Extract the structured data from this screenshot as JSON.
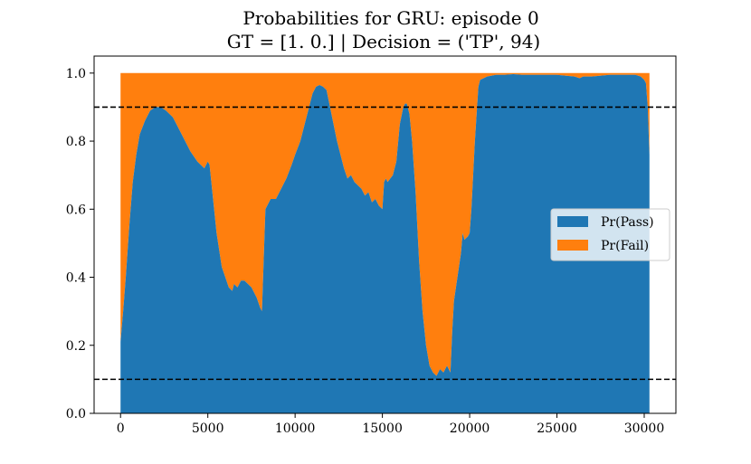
{
  "chart_data": {
    "type": "area",
    "title": "Probabilities for GRU: episode 0",
    "subtitle": "GT = [1. 0.] | Decision = ('TP', 94)",
    "xlim": [
      -1515,
      31815
    ],
    "ylim": [
      0,
      1.05
    ],
    "x_ticks": [
      0,
      5000,
      10000,
      15000,
      20000,
      25000,
      30000
    ],
    "x_tick_labels": [
      "0",
      "5000",
      "10000",
      "15000",
      "20000",
      "25000",
      "30000"
    ],
    "y_ticks": [
      0,
      0.2,
      0.4,
      0.6,
      0.8,
      1.0
    ],
    "y_tick_labels": [
      "0.0",
      "0.2",
      "0.4",
      "0.6",
      "0.8",
      "1.0"
    ],
    "thresholds": [
      0.1,
      0.9
    ],
    "grid": false,
    "legend_position": "center-right",
    "x": [
      0,
      150,
      300,
      500,
      700,
      900,
      1100,
      1400,
      1700,
      2000,
      2300,
      2600,
      3000,
      3300,
      3600,
      4000,
      4400,
      4800,
      5000,
      5100,
      5200,
      5500,
      5800,
      6000,
      6200,
      6400,
      6500,
      6700,
      6900,
      7100,
      7500,
      7800,
      8000,
      8100,
      8300,
      8600,
      8900,
      9200,
      9500,
      9800,
      10000,
      10300,
      10500,
      10700,
      10900,
      11000,
      11200,
      11400,
      11600,
      11800,
      12000,
      12200,
      12400,
      12600,
      12800,
      13000,
      13200,
      13400,
      13600,
      13800,
      14000,
      14200,
      14400,
      14600,
      14800,
      15000,
      15100,
      15200,
      15300,
      15600,
      15800,
      16000,
      16200,
      16300,
      16400,
      16550,
      16700,
      16900,
      17100,
      17300,
      17500,
      17700,
      17900,
      18100,
      18300,
      18500,
      18700,
      18900,
      19000,
      19100,
      19300,
      19500,
      19600,
      19700,
      19900,
      20000,
      20100,
      20300,
      20500,
      20600,
      20800,
      21000,
      21500,
      22000,
      22500,
      23000,
      24000,
      25000,
      26000,
      26300,
      26500,
      27000,
      28000,
      29000,
      29500,
      29800,
      30000,
      30100,
      30200,
      30300
    ],
    "series": [
      {
        "name": "Pr(Pass)",
        "color": "#1f77b4",
        "values": [
          0.21,
          0.3,
          0.4,
          0.55,
          0.68,
          0.76,
          0.82,
          0.86,
          0.89,
          0.9,
          0.9,
          0.89,
          0.87,
          0.84,
          0.81,
          0.77,
          0.74,
          0.72,
          0.74,
          0.73,
          0.68,
          0.53,
          0.43,
          0.4,
          0.37,
          0.36,
          0.38,
          0.37,
          0.39,
          0.39,
          0.37,
          0.34,
          0.31,
          0.3,
          0.6,
          0.63,
          0.63,
          0.66,
          0.69,
          0.73,
          0.76,
          0.8,
          0.84,
          0.88,
          0.92,
          0.94,
          0.96,
          0.965,
          0.96,
          0.95,
          0.9,
          0.85,
          0.8,
          0.76,
          0.72,
          0.69,
          0.7,
          0.68,
          0.67,
          0.66,
          0.64,
          0.65,
          0.62,
          0.63,
          0.61,
          0.6,
          0.68,
          0.69,
          0.68,
          0.7,
          0.74,
          0.85,
          0.9,
          0.91,
          0.91,
          0.88,
          0.8,
          0.65,
          0.45,
          0.3,
          0.2,
          0.14,
          0.12,
          0.11,
          0.13,
          0.12,
          0.14,
          0.12,
          0.24,
          0.33,
          0.4,
          0.47,
          0.53,
          0.51,
          0.52,
          0.53,
          0.6,
          0.8,
          0.96,
          0.98,
          0.985,
          0.99,
          0.995,
          0.995,
          0.997,
          0.995,
          0.995,
          0.995,
          0.99,
          0.985,
          0.99,
          0.99,
          0.995,
          0.995,
          0.995,
          0.99,
          0.98,
          0.97,
          0.9,
          0.76
        ]
      },
      {
        "name": "Pr(Fail)",
        "color": "#ff7f0e",
        "stacked_total": 1.0
      }
    ]
  }
}
